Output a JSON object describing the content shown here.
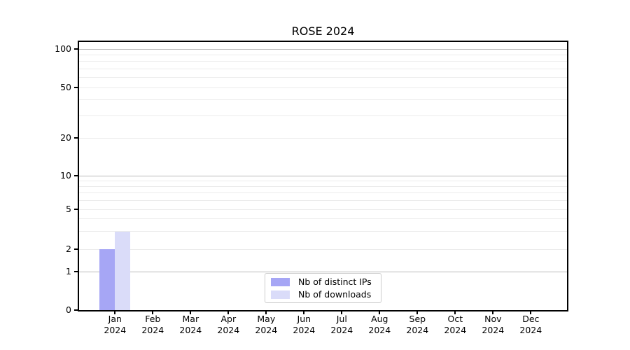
{
  "title": "ROSE 2024",
  "chart_data": {
    "type": "bar",
    "title": "ROSE 2024",
    "categories": [
      "Jan",
      "Feb",
      "Mar",
      "Apr",
      "May",
      "Jun",
      "Jul",
      "Aug",
      "Sep",
      "Oct",
      "Nov",
      "Dec"
    ],
    "year_label": "2024",
    "series": [
      {
        "name": "Nb of distinct IPs",
        "color": "#a6a6f5",
        "values": [
          2,
          0,
          0,
          0,
          0,
          0,
          0,
          0,
          0,
          0,
          0,
          0
        ]
      },
      {
        "name": "Nb of downloads",
        "color": "#dadcf9",
        "values": [
          3,
          0,
          0,
          0,
          0,
          0,
          0,
          0,
          0,
          0,
          0,
          0
        ]
      }
    ],
    "xlabel": "",
    "ylabel": "",
    "y_axis": {
      "scale": "symlog",
      "ticks": [
        0,
        1,
        2,
        5,
        10,
        20,
        50,
        100
      ],
      "major_gridlines": [
        1,
        10,
        100
      ],
      "minor_gridlines": [
        2,
        3,
        4,
        5,
        6,
        7,
        8,
        9,
        20,
        30,
        40,
        50,
        60,
        70,
        80,
        90
      ],
      "ylim": [
        0,
        115
      ]
    },
    "grid": "on",
    "legend_position": "bottom-center"
  }
}
